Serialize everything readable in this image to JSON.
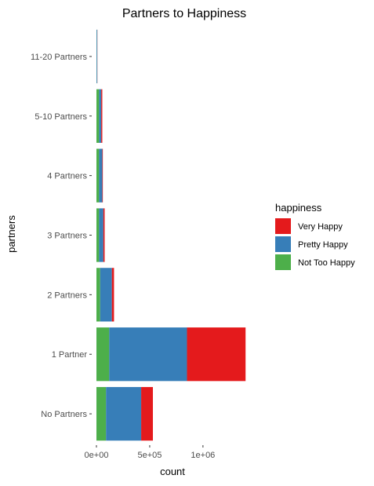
{
  "chart_data": {
    "type": "bar",
    "orientation": "horizontal",
    "stacked": true,
    "title": "Partners to Happiness",
    "xlabel": "count",
    "ylabel": "partners",
    "categories": [
      "No Partners",
      "1 Partner",
      "2 Partners",
      "3 Partners",
      "4 Partners",
      "5-10 Partners",
      "11-20 Partners"
    ],
    "series": [
      {
        "name": "Not Too Happy",
        "color": "#4daf4a",
        "values": [
          90000,
          120000,
          35000,
          25000,
          25000,
          25000,
          2000
        ]
      },
      {
        "name": "Pretty Happy",
        "color": "#377eb8",
        "values": [
          330000,
          730000,
          110000,
          40000,
          30000,
          20000,
          6000
        ]
      },
      {
        "name": "Very Happy",
        "color": "#e41a1c",
        "values": [
          110000,
          550000,
          20000,
          12000,
          5000,
          10000,
          1000
        ]
      }
    ],
    "xlim": [
      0,
      1450000
    ],
    "xticks": [
      0,
      500000,
      1000000
    ],
    "xtick_labels": [
      "0e+00",
      "5e+05",
      "1e+06"
    ],
    "grid": false,
    "legend": {
      "title": "happiness",
      "placement": "right",
      "order": [
        "Very Happy",
        "Pretty Happy",
        "Not Too Happy"
      ]
    }
  }
}
